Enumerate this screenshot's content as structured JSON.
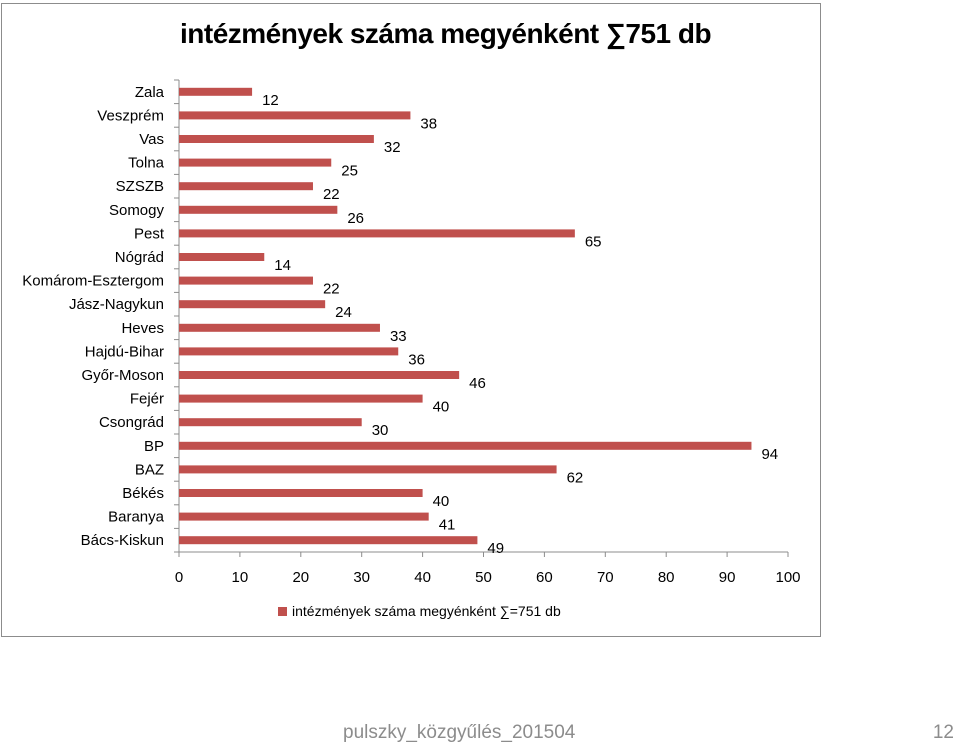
{
  "chart_data": {
    "type": "bar",
    "orientation": "horizontal",
    "title": "intézmények száma megyénként ∑751 db",
    "categories": [
      "Zala",
      "Veszprém",
      "Vas",
      "Tolna",
      "SZSZB",
      "Somogy",
      "Pest",
      "Nógrád",
      "Komárom-Esztergom",
      "Jász-Nagykun",
      "Heves",
      "Hajdú-Bihar",
      "Győr-Moson",
      "Fejér",
      "Csongrád",
      "BP",
      "BAZ",
      "Békés",
      "Baranya",
      "Bács-Kiskun"
    ],
    "series": [
      {
        "name": "intézmények száma megyénként ∑=751 db",
        "values": [
          12,
          38,
          32,
          25,
          22,
          26,
          65,
          14,
          22,
          24,
          33,
          36,
          46,
          40,
          30,
          94,
          62,
          40,
          41,
          49
        ],
        "color": "#c0504d"
      }
    ],
    "xlim": [
      0,
      100
    ],
    "xticks": [
      "0",
      "10",
      "20",
      "30",
      "40",
      "50",
      "60",
      "70",
      "80",
      "90",
      "100"
    ],
    "grid": false,
    "legend_position": "bottom",
    "xlabel": "",
    "ylabel": ""
  },
  "footer": {
    "text": "pulszky_közgyűlés_201504",
    "page": "12"
  }
}
